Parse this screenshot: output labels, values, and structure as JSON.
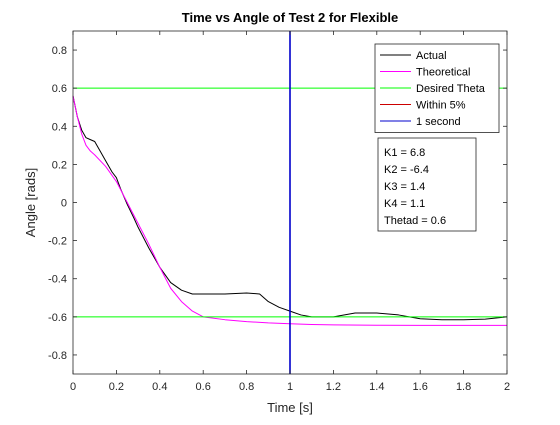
{
  "chart_data": {
    "type": "line",
    "title": "Time vs Angle of Test 2 for Flexible",
    "xlabel": "Time [s]",
    "ylabel": "Angle [rads]",
    "xlim": [
      0,
      2
    ],
    "ylim": [
      -0.9,
      0.9
    ],
    "xticks": [
      0,
      0.2,
      0.4,
      0.6,
      0.8,
      1,
      1.2,
      1.4,
      1.6,
      1.8,
      2
    ],
    "xtick_labels": [
      "0",
      "0.2",
      "0.4",
      "0.6",
      "0.8",
      "1",
      "1.2",
      "1.4",
      "1.6",
      "1.8",
      "2"
    ],
    "yticks": [
      0.8,
      0.6,
      0.4,
      0.2,
      0,
      -0.2,
      -0.4,
      -0.6,
      -0.8
    ],
    "ytick_labels": [
      "0.8",
      "0.6",
      "0.4",
      "0.2",
      "0",
      "-0.2",
      "-0.4",
      "-0.6",
      "-0.8"
    ],
    "grid": false,
    "legend_position": "top-right",
    "series": [
      {
        "name": "Actual",
        "color": "#000000",
        "x": [
          0,
          0.02,
          0.04,
          0.06,
          0.08,
          0.1,
          0.12,
          0.15,
          0.18,
          0.2,
          0.22,
          0.25,
          0.28,
          0.3,
          0.35,
          0.4,
          0.45,
          0.5,
          0.55,
          0.6,
          0.7,
          0.8,
          0.86,
          0.9,
          0.95,
          1.0,
          1.05,
          1.1,
          1.15,
          1.2,
          1.3,
          1.4,
          1.5,
          1.55,
          1.6,
          1.7,
          1.8,
          1.9,
          2.0
        ],
        "y": [
          0.56,
          0.45,
          0.38,
          0.34,
          0.33,
          0.32,
          0.28,
          0.22,
          0.16,
          0.13,
          0.07,
          -0.01,
          -0.08,
          -0.13,
          -0.24,
          -0.34,
          -0.42,
          -0.46,
          -0.48,
          -0.48,
          -0.48,
          -0.475,
          -0.48,
          -0.52,
          -0.55,
          -0.57,
          -0.59,
          -0.6,
          -0.6,
          -0.6,
          -0.58,
          -0.58,
          -0.59,
          -0.6,
          -0.61,
          -0.615,
          -0.615,
          -0.612,
          -0.6
        ]
      },
      {
        "name": "Theoretical",
        "color": "#ff00ff",
        "x": [
          0,
          0.02,
          0.04,
          0.06,
          0.08,
          0.1,
          0.15,
          0.2,
          0.25,
          0.3,
          0.35,
          0.4,
          0.45,
          0.5,
          0.55,
          0.6,
          0.7,
          0.8,
          0.9,
          1.0,
          1.1,
          1.2,
          1.4,
          1.6,
          1.8,
          2.0
        ],
        "y": [
          0.56,
          0.45,
          0.36,
          0.3,
          0.27,
          0.25,
          0.19,
          0.11,
          0.0,
          -0.11,
          -0.22,
          -0.34,
          -0.45,
          -0.52,
          -0.57,
          -0.6,
          -0.615,
          -0.625,
          -0.632,
          -0.636,
          -0.64,
          -0.642,
          -0.644,
          -0.645,
          -0.645,
          -0.645
        ]
      },
      {
        "name": "Desired Theta",
        "color": "#00ff00",
        "x": [
          0,
          2
        ],
        "y": [
          0.6,
          0.6
        ]
      },
      {
        "name": "Desired Theta",
        "color": "#00ff00",
        "x": [
          0,
          2
        ],
        "y": [
          -0.6,
          -0.6
        ]
      },
      {
        "name": "Within 5%",
        "color": "#cc0000",
        "x": [
          1,
          1
        ],
        "y": [
          -0.9,
          0.9
        ]
      },
      {
        "name": "1 second",
        "color": "#0000cc",
        "x": [
          1,
          1
        ],
        "y": [
          -0.9,
          0.9
        ]
      }
    ],
    "legend": [
      {
        "label": "Actual",
        "color": "#000000"
      },
      {
        "label": "Theoretical",
        "color": "#ff00ff"
      },
      {
        "label": "Desired Theta",
        "color": "#00ff00"
      },
      {
        "label": "Within 5%",
        "color": "#cc0000"
      },
      {
        "label": "1 second",
        "color": "#0000cc"
      }
    ],
    "annotation_lines": [
      "K1 = 6.8",
      "K2 = -6.4",
      "K3 = 1.4",
      "K4 = 1.1",
      "Thetad = 0.6"
    ]
  }
}
